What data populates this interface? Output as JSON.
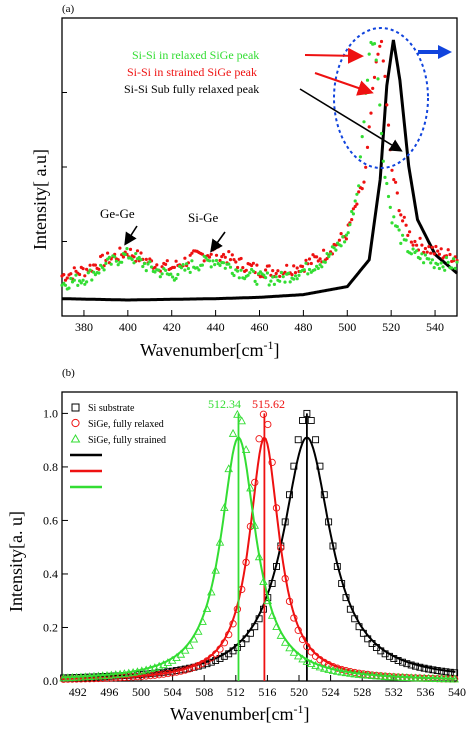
{
  "panel_a": {
    "label": "(a)",
    "xlabel": "Wavenumber[cm",
    "xlabel_sup": "-1",
    "xlabel_end": "]",
    "ylabel": "Intensity[ a.u]",
    "annotations": {
      "relaxed": "Si-Si in relaxed SiGe peak",
      "strained": "Si-Si in strained SiGe peak",
      "substrate": "Si-Si Sub fully relaxed peak",
      "gege": "Ge-Ge",
      "sige": "Si-Ge"
    }
  },
  "panel_b": {
    "label": "(b)",
    "xlabel": "Wavenumber[cm",
    "xlabel_sup": "-1",
    "xlabel_end": "]",
    "ylabel": "Intensity[a. u]",
    "peak_labels": {
      "green": "512.34",
      "red": "515.62"
    },
    "legend": [
      "Si substrate",
      "SiGe, fully relaxed",
      "SiGe, fully strained"
    ]
  },
  "colors": {
    "green": "#33dd33",
    "red": "#ee1111",
    "black": "#000000",
    "blue": "#1144dd"
  },
  "chart_data": [
    {
      "type": "scatter",
      "xlim": [
        370,
        550
      ],
      "xticks": [
        380,
        400,
        420,
        440,
        460,
        480,
        500,
        520,
        540
      ],
      "series": [
        {
          "name": "Si-Si in relaxed SiGe peak",
          "color": "#33dd33",
          "points": [
            [
              370,
              0.06
            ],
            [
              380,
              0.08
            ],
            [
              390,
              0.13
            ],
            [
              400,
              0.17
            ],
            [
              410,
              0.12
            ],
            [
              420,
              0.09
            ],
            [
              430,
              0.13
            ],
            [
              440,
              0.15
            ],
            [
              450,
              0.11
            ],
            [
              460,
              0.08
            ],
            [
              470,
              0.08
            ],
            [
              480,
              0.11
            ],
            [
              490,
              0.15
            ],
            [
              500,
              0.24
            ],
            [
              505,
              0.42
            ],
            [
              510,
              0.92
            ],
            [
              512,
              0.99
            ],
            [
              514,
              0.85
            ],
            [
              516,
              0.55
            ],
            [
              520,
              0.32
            ],
            [
              525,
              0.22
            ],
            [
              530,
              0.17
            ],
            [
              540,
              0.14
            ],
            [
              550,
              0.13
            ]
          ]
        },
        {
          "name": "Si-Si in strained SiGe peak",
          "color": "#ee1111",
          "points": [
            [
              370,
              0.09
            ],
            [
              380,
              0.11
            ],
            [
              390,
              0.15
            ],
            [
              400,
              0.18
            ],
            [
              410,
              0.14
            ],
            [
              420,
              0.12
            ],
            [
              430,
              0.16
            ],
            [
              440,
              0.18
            ],
            [
              450,
              0.14
            ],
            [
              460,
              0.11
            ],
            [
              470,
              0.11
            ],
            [
              480,
              0.13
            ],
            [
              490,
              0.17
            ],
            [
              500,
              0.25
            ],
            [
              508,
              0.45
            ],
            [
              512,
              0.8
            ],
            [
              515,
              0.98
            ],
            [
              517,
              0.85
            ],
            [
              520,
              0.5
            ],
            [
              525,
              0.3
            ],
            [
              530,
              0.22
            ],
            [
              540,
              0.18
            ],
            [
              550,
              0.16
            ]
          ]
        },
        {
          "name": "Si-Si Sub fully relaxed peak",
          "color": "#000000",
          "points": [
            [
              370,
              0.005
            ],
            [
              400,
              0.0
            ],
            [
              440,
              0.005
            ],
            [
              460,
              0.01
            ],
            [
              480,
              0.02
            ],
            [
              500,
              0.05
            ],
            [
              510,
              0.15
            ],
            [
              515,
              0.45
            ],
            [
              518,
              0.8
            ],
            [
              521,
              0.97
            ],
            [
              524,
              0.82
            ],
            [
              528,
              0.5
            ],
            [
              532,
              0.3
            ],
            [
              540,
              0.17
            ],
            [
              550,
              0.1
            ]
          ]
        }
      ]
    },
    {
      "type": "scatter",
      "xlim": [
        490,
        540
      ],
      "ylim": [
        0.0,
        1.08
      ],
      "xticks": [
        492,
        496,
        500,
        504,
        508,
        512,
        516,
        520,
        524,
        528,
        532,
        536,
        540
      ],
      "yticks": [
        0.0,
        0.2,
        0.4,
        0.6,
        0.8,
        1.0
      ],
      "series": [
        {
          "name": "Si substrate",
          "color": "#000000",
          "marker": "square",
          "peak": 521.0,
          "fit_peak_height": 0.91,
          "gamma": 3.7
        },
        {
          "name": "SiGe, fully relaxed",
          "color": "#ee1111",
          "marker": "circle",
          "peak": 515.62,
          "fit_peak_height": 0.91,
          "gamma": 2.3
        },
        {
          "name": "SiGe, fully strained",
          "color": "#33dd33",
          "marker": "triangle",
          "peak": 512.34,
          "fit_peak_height": 0.91,
          "gamma": 2.7
        }
      ]
    }
  ]
}
